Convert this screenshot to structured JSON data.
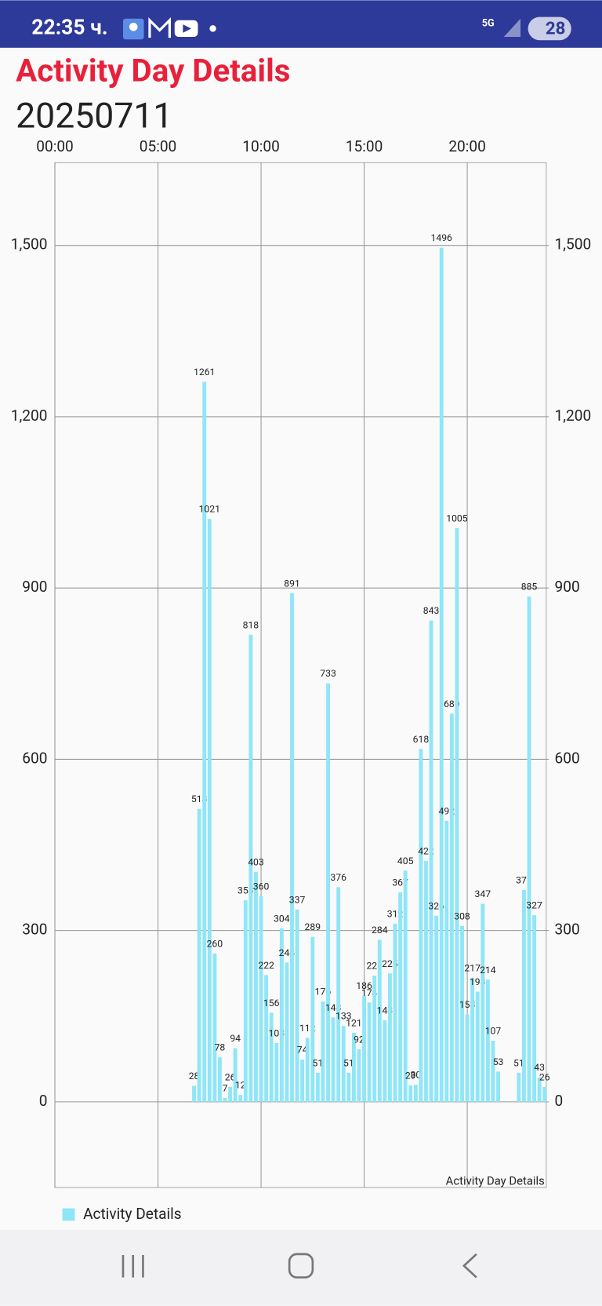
{
  "status_bar": {
    "time": "22:35 ч.",
    "network": "5G",
    "battery": "28"
  },
  "header": {
    "title": "Activity Day Details",
    "date": "20250711"
  },
  "chart_data": {
    "type": "bar",
    "description": "Activity Day Details",
    "x": [
      405,
      420,
      435,
      450,
      465,
      480,
      495,
      510,
      525,
      540,
      555,
      570,
      585,
      600,
      615,
      630,
      645,
      660,
      675,
      690,
      705,
      720,
      735,
      750,
      765,
      780,
      795,
      810,
      825,
      840,
      855,
      870,
      885,
      900,
      915,
      930,
      945,
      960,
      975,
      990,
      1005,
      1020,
      1035,
      1050,
      1065,
      1080,
      1095,
      1110,
      1125,
      1140,
      1155,
      1170,
      1185,
      1200,
      1215,
      1230,
      1245,
      1260,
      1275,
      1290,
      1350,
      1365,
      1380,
      1395,
      1410,
      1425
    ],
    "series": [
      {
        "name": "Activity Details",
        "color": "#8fe6f7",
        "values": [
          28,
          513,
          1261,
          1021,
          260,
          78,
          7,
          26,
          94,
          12,
          353,
          818,
          403,
          360,
          222,
          156,
          103,
          304,
          244,
          891,
          337,
          74,
          112,
          289,
          51,
          176,
          733,
          148,
          376,
          133,
          51,
          121,
          92,
          186,
          174,
          221,
          284,
          143,
          225,
          312,
          367,
          405,
          29,
          30,
          618,
          422,
          843,
          326,
          1496,
          492,
          680,
          1005,
          308,
          153,
          217,
          193,
          347,
          214,
          107,
          53,
          51,
          371,
          885,
          327,
          43,
          26
        ]
      }
    ],
    "xlim": [
      0,
      1430
    ],
    "xticks": [
      {
        "value": 0,
        "label": "00:00"
      },
      {
        "value": 300,
        "label": "05:00"
      },
      {
        "value": 600,
        "label": "10:00"
      },
      {
        "value": 900,
        "label": "15:00"
      },
      {
        "value": 1200,
        "label": "20:00"
      }
    ],
    "ylim": [
      -150,
      1645
    ],
    "yticks": [
      0,
      300,
      600,
      900,
      {
        "value": 1200,
        "label": "1,200"
      },
      {
        "value": 1500,
        "label": "1,500"
      }
    ],
    "y2lim": [
      -150,
      1645
    ],
    "y2ticks": [
      0,
      300,
      600,
      900,
      {
        "value": 1200,
        "label": "1,200"
      },
      {
        "value": 1500,
        "label": "1,500"
      }
    ],
    "grid": true,
    "legend": "bottom-left"
  }
}
